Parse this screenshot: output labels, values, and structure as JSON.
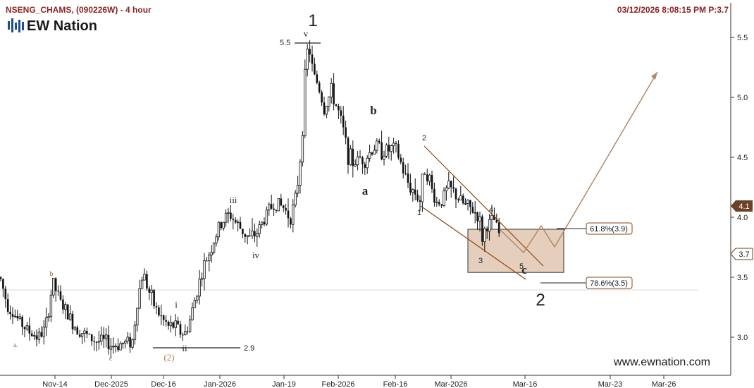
{
  "header": {
    "title": "NSENG_CHAMS, (090226W) - 4 hour",
    "timestamp": "03/12/2026 8:08:15 PM  P:3.7"
  },
  "brand": {
    "logo_text": "EW Nation",
    "watermark": "www.ewnation.com"
  },
  "colors": {
    "candle": "#111111",
    "wedge": "#8b4513",
    "projection": "#b08968",
    "zone_fill": "#dcbfa6",
    "price_badge_dark": "#6b4226",
    "label_brown": "#8b4513"
  },
  "chart_data": {
    "type": "candlestick",
    "symbol": "NSENG_CHAMS",
    "timeframe": "4 hour",
    "y_ticks": [
      3.0,
      3.5,
      4.0,
      4.5,
      5.0,
      5.5
    ],
    "ylim": [
      2.8,
      5.73
    ],
    "x_ticks": [
      "Nov-14",
      "Dec-2025",
      "Dec-16",
      "Jan-2026",
      "Jan-19",
      "Feb-2026",
      "Feb-16",
      "Mar-2026",
      "Mar-16",
      "Mar-23",
      "Mar-26"
    ],
    "price_path": [
      [
        0,
        3.5
      ],
      [
        10,
        3.28
      ],
      [
        25,
        3.15
      ],
      [
        40,
        3.05
      ],
      [
        55,
        3.0
      ],
      [
        65,
        3.08
      ],
      [
        75,
        3.46
      ],
      [
        85,
        3.3
      ],
      [
        95,
        3.2
      ],
      [
        105,
        3.1
      ],
      [
        115,
        3.05
      ],
      [
        125,
        3.0
      ],
      [
        135,
        2.97
      ],
      [
        150,
        2.96
      ],
      [
        160,
        2.93
      ],
      [
        175,
        2.95
      ],
      [
        188,
        2.97
      ],
      [
        195,
        3.3
      ],
      [
        203,
        3.55
      ],
      [
        210,
        3.4
      ],
      [
        220,
        3.25
      ],
      [
        230,
        3.15
      ],
      [
        240,
        3.08
      ],
      [
        248,
        3.1
      ],
      [
        255,
        3.05
      ],
      [
        262,
        3.02
      ],
      [
        270,
        3.15
      ],
      [
        280,
        3.4
      ],
      [
        290,
        3.6
      ],
      [
        300,
        3.75
      ],
      [
        310,
        3.9
      ],
      [
        320,
        4.0
      ],
      [
        327,
        4.02
      ],
      [
        335,
        3.95
      ],
      [
        345,
        3.88
      ],
      [
        355,
        3.82
      ],
      [
        363,
        3.86
      ],
      [
        372,
        3.95
      ],
      [
        382,
        4.07
      ],
      [
        392,
        4.12
      ],
      [
        402,
        4.08
      ],
      [
        412,
        4.0
      ],
      [
        420,
        4.15
      ],
      [
        428,
        4.6
      ],
      [
        434,
        5.3
      ],
      [
        438,
        5.45
      ],
      [
        444,
        5.2
      ],
      [
        452,
        5.1
      ],
      [
        460,
        4.9
      ],
      [
        470,
        5.05
      ],
      [
        480,
        4.88
      ],
      [
        488,
        4.7
      ],
      [
        494,
        4.52
      ],
      [
        502,
        4.45
      ],
      [
        512,
        4.5
      ],
      [
        518,
        4.48
      ],
      [
        526,
        4.55
      ],
      [
        534,
        4.6
      ],
      [
        542,
        4.55
      ],
      [
        552,
        4.56
      ],
      [
        560,
        4.58
      ],
      [
        566,
        4.5
      ],
      [
        574,
        4.35
      ],
      [
        582,
        4.25
      ],
      [
        590,
        4.2
      ],
      [
        596,
        4.14
      ],
      [
        602,
        4.42
      ],
      [
        608,
        4.35
      ],
      [
        614,
        4.2
      ],
      [
        620,
        4.12
      ],
      [
        628,
        4.15
      ],
      [
        636,
        4.25
      ],
      [
        645,
        4.2
      ],
      [
        655,
        4.12
      ],
      [
        665,
        4.08
      ],
      [
        673,
        4.05
      ],
      [
        680,
        4.0
      ],
      [
        684,
        3.82
      ],
      [
        690,
        3.93
      ],
      [
        697,
        3.95
      ],
      [
        702,
        3.98
      ],
      [
        707,
        3.85
      ],
      [
        710,
        3.88
      ]
    ],
    "wave_labels": {
      "minor": [
        {
          "text": "a.",
          "date_x": 22,
          "price": 2.94
        },
        {
          "text": "b",
          "date_x": 73,
          "price": 3.54
        },
        {
          "text": "c",
          "date_x": 157,
          "price": 2.83
        },
        {
          "text": "(2)",
          "date_x": 240,
          "price": 2.83
        }
      ],
      "intermediate": [
        {
          "text": "i",
          "date_x": 250,
          "price": 3.27
        },
        {
          "text": "ii",
          "date_x": 262,
          "price": 2.91
        },
        {
          "text": "iii",
          "date_x": 331,
          "price": 4.14
        },
        {
          "text": "iv",
          "date_x": 363,
          "price": 3.66
        },
        {
          "text": "v",
          "date_x": 434,
          "price": 5.6
        }
      ],
      "abc": [
        {
          "text": "a",
          "date_x": 518,
          "price": 4.17
        },
        {
          "text": "b",
          "date_x": 530,
          "price": 4.88
        },
        {
          "text": "c",
          "date_x": 744,
          "price": 3.53
        }
      ],
      "primary": [
        {
          "text": "1",
          "date_x": 444,
          "price": 5.63
        },
        {
          "text": "2",
          "date_x": 767,
          "price": 3.28
        }
      ],
      "sub_c": [
        {
          "text": "1",
          "date_x": 595,
          "price": 4.05
        },
        {
          "text": "2",
          "date_x": 602,
          "price": 4.64
        },
        {
          "text": "3",
          "date_x": 682,
          "price": 3.63
        },
        {
          "text": "4",
          "date_x": 697,
          "price": 4.07
        },
        {
          "text": "5",
          "date_x": 740,
          "price": 3.59
        }
      ]
    },
    "levels": [
      {
        "label": "5.5",
        "price": 5.45
      },
      {
        "label": "2.9",
        "price": 2.92
      }
    ],
    "fib_levels": [
      {
        "label": "61.8%(3.9)",
        "price": 3.9
      },
      {
        "label": "78.6%(3.5)",
        "price": 3.5
      }
    ],
    "target_zone": {
      "top": 3.9,
      "bottom": 3.54
    },
    "current_price": 4.1,
    "marked_price": 3.7
  }
}
